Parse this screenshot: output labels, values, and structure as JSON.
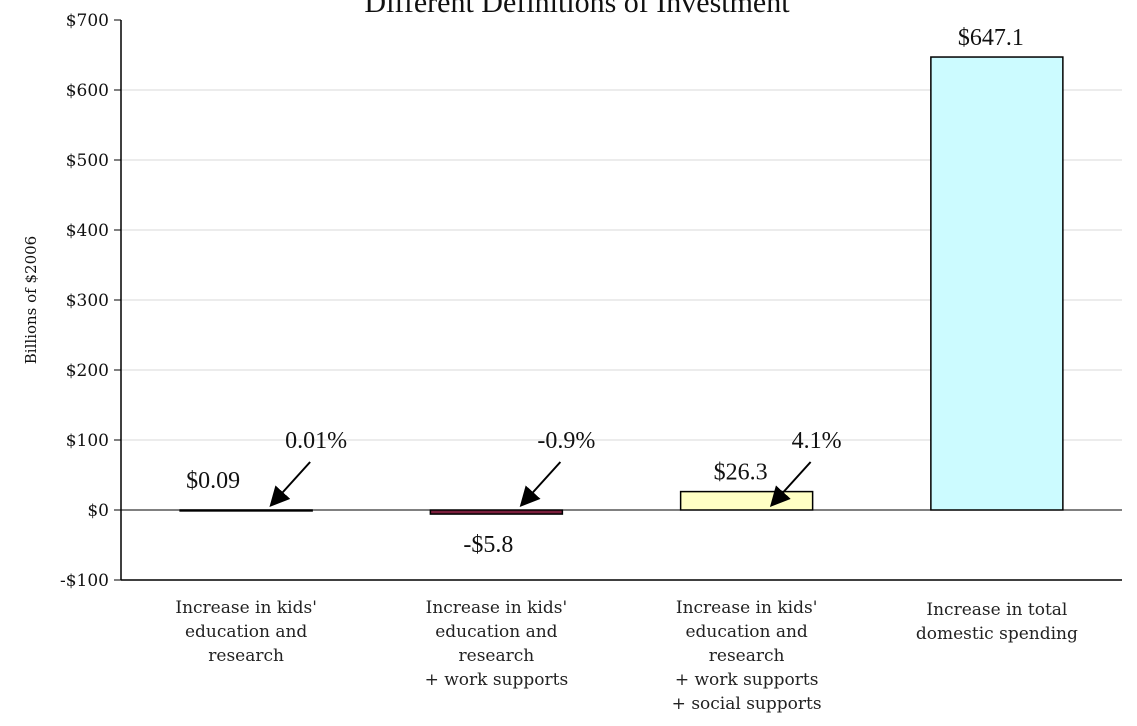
{
  "chart_data": {
    "type": "bar",
    "title": "Different Definitions of Investment",
    "ylabel": "Billions of $2006",
    "xlabel": "",
    "ylim": [
      -100,
      700
    ],
    "yticks": [
      -100,
      0,
      100,
      200,
      300,
      400,
      500,
      600,
      700
    ],
    "ytick_labels": [
      "-$100",
      "$0",
      "$100",
      "$200",
      "$300",
      "$400",
      "$500",
      "$600",
      "$700"
    ],
    "grid": true,
    "categories": [
      [
        "Increase in kids'",
        "education and",
        "research"
      ],
      [
        "Increase in kids'",
        "education and",
        "research",
        "+ work supports"
      ],
      [
        "Increase in kids'",
        "education and",
        "research",
        "+ work supports",
        "+ social supports"
      ],
      [
        "Increase in total",
        "domestic spending"
      ]
    ],
    "values": [
      0.09,
      -5.8,
      26.3,
      647.1
    ],
    "value_labels": [
      "$0.09",
      "-$5.8",
      "$26.3",
      "$647.1"
    ],
    "percent_labels": [
      "0.01%",
      "-0.9%",
      "4.1%",
      ""
    ],
    "bar_colors": [
      "#7a1e3c",
      "#7a1e3c",
      "#ffffc4",
      "#ccfbff"
    ]
  }
}
